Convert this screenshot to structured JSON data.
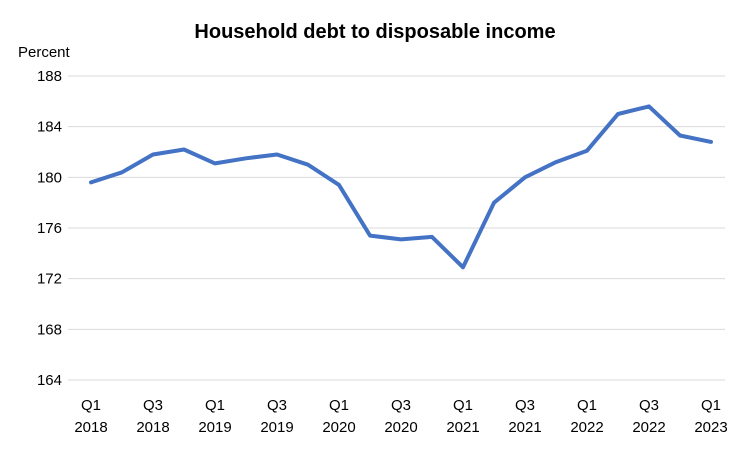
{
  "chart_data": {
    "type": "line",
    "title": "Household debt to disposable income",
    "ylabel": "Percent",
    "xlabel": "",
    "ylim": [
      164,
      188
    ],
    "yticks": [
      164,
      168,
      172,
      176,
      180,
      184,
      188
    ],
    "grid": true,
    "legend": "none",
    "line_color": "#4472c4",
    "categories": [
      "2018Q1",
      "2018Q2",
      "2018Q3",
      "2018Q4",
      "2019Q1",
      "2019Q2",
      "2019Q3",
      "2019Q4",
      "2020Q1",
      "2020Q2",
      "2020Q3",
      "2020Q4",
      "2021Q1",
      "2021Q2",
      "2021Q3",
      "2021Q4",
      "2022Q1",
      "2022Q2",
      "2022Q3",
      "2022Q4",
      "2023Q1"
    ],
    "x_tick_labels": [
      {
        "index": 0,
        "quarter": "Q1",
        "year": "2018"
      },
      {
        "index": 2,
        "quarter": "Q3",
        "year": "2018"
      },
      {
        "index": 4,
        "quarter": "Q1",
        "year": "2019"
      },
      {
        "index": 6,
        "quarter": "Q3",
        "year": "2019"
      },
      {
        "index": 8,
        "quarter": "Q1",
        "year": "2020"
      },
      {
        "index": 10,
        "quarter": "Q3",
        "year": "2020"
      },
      {
        "index": 12,
        "quarter": "Q1",
        "year": "2021"
      },
      {
        "index": 14,
        "quarter": "Q3",
        "year": "2021"
      },
      {
        "index": 16,
        "quarter": "Q1",
        "year": "2022"
      },
      {
        "index": 18,
        "quarter": "Q3",
        "year": "2022"
      },
      {
        "index": 20,
        "quarter": "Q1",
        "year": "2023"
      }
    ],
    "series": [
      {
        "values": [
          179.6,
          180.4,
          181.8,
          182.2,
          181.1,
          181.5,
          181.8,
          181.0,
          179.4,
          175.4,
          175.1,
          175.3,
          172.9,
          178.0,
          180.0,
          181.2,
          182.1,
          185.0,
          185.6,
          183.3,
          182.8
        ]
      }
    ]
  }
}
